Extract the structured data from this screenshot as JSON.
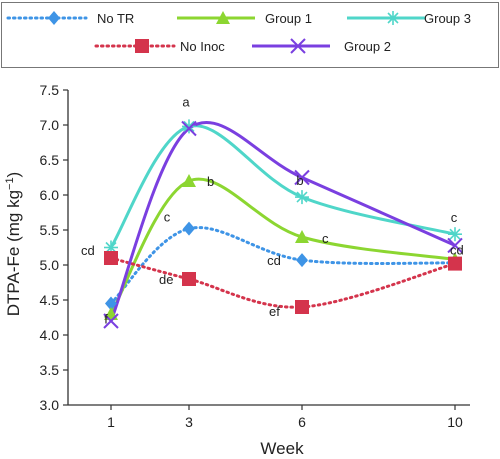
{
  "chart_data": {
    "type": "line",
    "xlabel": "Week",
    "ylabel_main": "DTPA-Fe (mg kg",
    "ylabel_sup": "−1",
    "ylabel_close": ")",
    "x": [
      1,
      3,
      6,
      10
    ],
    "x_tick_labels": [
      "1",
      "3",
      "6",
      "10"
    ],
    "ylim": [
      3.0,
      7.5
    ],
    "y_ticks": [
      "3.0",
      "3.5",
      "4.0",
      "4.5",
      "5.0",
      "5.5",
      "6.0",
      "6.5",
      "7.0",
      "7.5"
    ],
    "grid": false,
    "legend_position": "top",
    "series": [
      {
        "name": "No TR",
        "color": "#3e94e6",
        "line_style": "dotted",
        "marker": "diamond",
        "values": [
          4.45,
          5.52,
          5.07,
          5.03
        ],
        "labels": [
          "f",
          "c",
          "cd",
          ""
        ]
      },
      {
        "name": "Group 1",
        "color": "#8cd631",
        "line_style": "solid",
        "marker": "triangle",
        "values": [
          4.3,
          6.2,
          5.4,
          5.08
        ],
        "labels": [
          "",
          "b",
          "c",
          ""
        ]
      },
      {
        "name": "Group 3",
        "color": "#4fd6c9",
        "line_style": "solid",
        "marker": "asterisk",
        "values": [
          5.25,
          6.98,
          5.97,
          5.44
        ],
        "labels": [
          "",
          "a",
          "b",
          "c"
        ]
      },
      {
        "name": "No Inoc",
        "color": "#d4344c",
        "line_style": "dotted",
        "marker": "square",
        "values": [
          5.1,
          4.8,
          4.4,
          5.02
        ],
        "labels": [
          "cd",
          "de",
          "ef",
          "cd"
        ]
      },
      {
        "name": "Group 2",
        "color": "#7a3fe0",
        "line_style": "solid",
        "marker": "x",
        "values": [
          4.2,
          6.95,
          6.25,
          5.28
        ],
        "labels": [
          "",
          "",
          "",
          ""
        ]
      }
    ]
  }
}
